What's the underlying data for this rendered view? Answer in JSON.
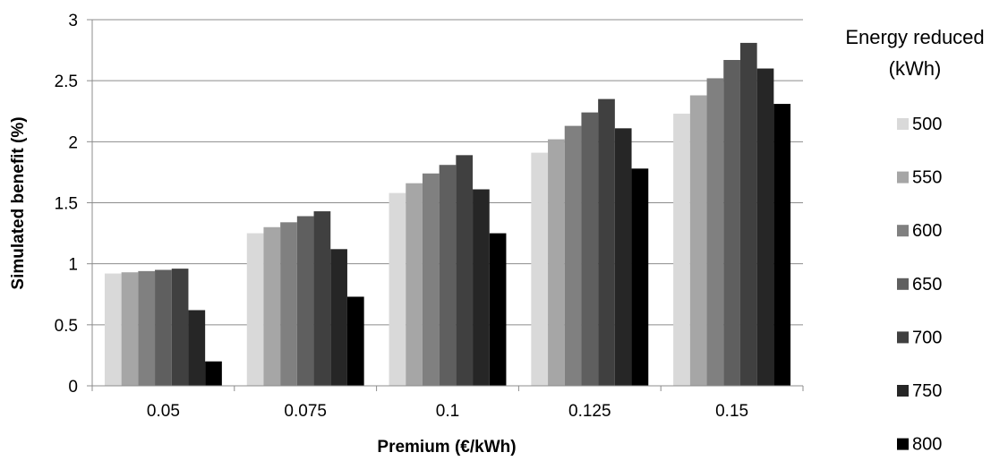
{
  "chart_data": {
    "type": "bar",
    "xlabel": "Premium (€/kWh)",
    "ylabel": "Simulated benefit (%)",
    "categories": [
      "0.05",
      "0.075",
      "0.1",
      "0.125",
      "0.15"
    ],
    "ylim": [
      0,
      3
    ],
    "yticks": [
      "0",
      "0.5",
      "1",
      "1.5",
      "2",
      "2.5",
      "3"
    ],
    "grid": true,
    "legend": {
      "title_lines": [
        "Energy reduced",
        "(kWh)"
      ],
      "placement": "right"
    },
    "series": [
      {
        "name": "500",
        "color": "#d9d9d9",
        "values": [
          0.92,
          1.25,
          1.58,
          1.91,
          2.23
        ]
      },
      {
        "name": "550",
        "color": "#a6a6a6",
        "values": [
          0.93,
          1.3,
          1.66,
          2.02,
          2.38
        ]
      },
      {
        "name": "600",
        "color": "#808080",
        "values": [
          0.94,
          1.34,
          1.74,
          2.13,
          2.52
        ]
      },
      {
        "name": "650",
        "color": "#5f5f5f",
        "values": [
          0.95,
          1.39,
          1.81,
          2.24,
          2.67
        ]
      },
      {
        "name": "700",
        "color": "#404040",
        "values": [
          0.96,
          1.43,
          1.89,
          2.35,
          2.81
        ]
      },
      {
        "name": "750",
        "color": "#262626",
        "values": [
          0.62,
          1.12,
          1.61,
          2.11,
          2.6
        ]
      },
      {
        "name": "800",
        "color": "#000000",
        "values": [
          0.2,
          0.73,
          1.25,
          1.78,
          2.31
        ]
      }
    ]
  }
}
